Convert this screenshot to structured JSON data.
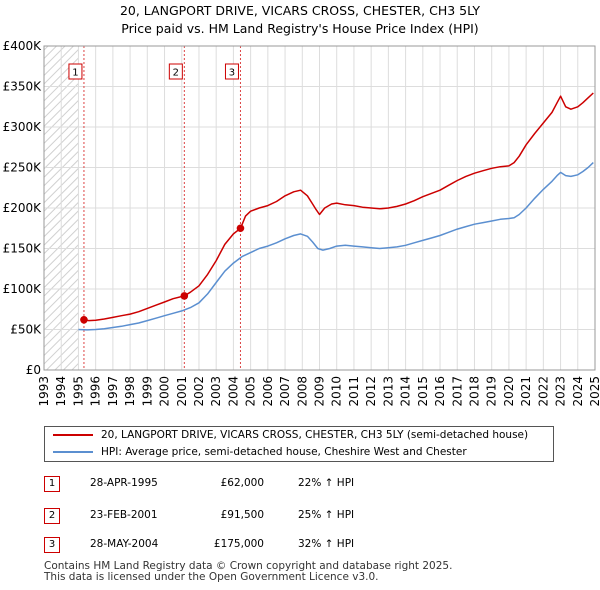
{
  "title_line1": "20, LANGPORT DRIVE, VICARS CROSS, CHESTER, CH3 5LY",
  "title_line2": "Price paid vs. HM Land Registry's House Price Index (HPI)",
  "chart_data": {
    "type": "line",
    "xlim": [
      1993,
      2025
    ],
    "ylim": [
      0,
      400000
    ],
    "y_ticks": [
      0,
      50000,
      100000,
      150000,
      200000,
      250000,
      300000,
      350000,
      400000
    ],
    "y_tick_labels": [
      "£0",
      "£50K",
      "£100K",
      "£150K",
      "£200K",
      "£250K",
      "£300K",
      "£350K",
      "£400K"
    ],
    "x_ticks": [
      1993,
      1994,
      1995,
      1996,
      1997,
      1998,
      1999,
      2000,
      2001,
      2002,
      2003,
      2004,
      2005,
      2006,
      2007,
      2008,
      2009,
      2010,
      2011,
      2012,
      2013,
      2014,
      2015,
      2016,
      2017,
      2018,
      2019,
      2020,
      2021,
      2022,
      2023,
      2024,
      2025
    ],
    "hatch_regions": [
      [
        1993,
        1995.0
      ],
      [
        2025.0,
        2025.3
      ]
    ],
    "grid": true,
    "series": [
      {
        "name": "20, LANGPORT DRIVE, VICARS CROSS, CHESTER, CH3 5LY (semi-detached house)",
        "color": "#cc0000",
        "x": [
          1995.32,
          1995.6,
          1996.0,
          1996.5,
          1997.0,
          1997.5,
          1998.0,
          1998.5,
          1999.0,
          1999.5,
          2000.0,
          2000.5,
          2001.15,
          2001.5,
          2002.0,
          2002.5,
          2003.0,
          2003.5,
          2004.0,
          2004.41,
          2004.7,
          2005.0,
          2005.5,
          2006.0,
          2006.5,
          2007.0,
          2007.5,
          2007.9,
          2008.3,
          2008.6,
          2008.8,
          2009.0,
          2009.3,
          2009.7,
          2010.0,
          2010.5,
          2011.0,
          2011.5,
          2012.0,
          2012.5,
          2013.0,
          2013.5,
          2014.0,
          2014.5,
          2015.0,
          2015.5,
          2016.0,
          2016.5,
          2017.0,
          2017.5,
          2018.0,
          2018.5,
          2019.0,
          2019.5,
          2020.0,
          2020.3,
          2020.6,
          2021.0,
          2021.5,
          2022.0,
          2022.5,
          2022.8,
          2023.0,
          2023.3,
          2023.6,
          2024.0,
          2024.3,
          2024.6,
          2024.9
        ],
        "values": [
          62000,
          61000,
          61500,
          63000,
          65000,
          67000,
          69000,
          72000,
          76000,
          80000,
          84000,
          88000,
          91500,
          96000,
          104000,
          118000,
          135000,
          155000,
          168000,
          175000,
          190000,
          196000,
          200000,
          203000,
          208000,
          215000,
          220000,
          222000,
          215000,
          205000,
          198000,
          192000,
          200000,
          205000,
          206000,
          204000,
          203000,
          201000,
          200000,
          199000,
          200000,
          202000,
          205000,
          209000,
          214000,
          218000,
          222000,
          228000,
          234000,
          239000,
          243000,
          246000,
          249000,
          251000,
          252000,
          256000,
          264000,
          278000,
          292000,
          305000,
          318000,
          330000,
          338000,
          325000,
          322000,
          325000,
          330000,
          336000,
          342000
        ]
      },
      {
        "name": "HPI: Average price, semi-detached house, Cheshire West and Chester",
        "color": "#5b8fd0",
        "x": [
          1995.0,
          1995.5,
          1996.0,
          1996.5,
          1997.0,
          1997.5,
          1998.0,
          1998.5,
          1999.0,
          1999.5,
          2000.0,
          2000.5,
          2001.0,
          2001.5,
          2002.0,
          2002.5,
          2003.0,
          2003.5,
          2004.0,
          2004.5,
          2005.0,
          2005.5,
          2006.0,
          2006.5,
          2007.0,
          2007.5,
          2007.9,
          2008.3,
          2008.6,
          2008.9,
          2009.2,
          2009.6,
          2010.0,
          2010.5,
          2011.0,
          2011.5,
          2012.0,
          2012.5,
          2013.0,
          2013.5,
          2014.0,
          2014.5,
          2015.0,
          2015.5,
          2016.0,
          2016.5,
          2017.0,
          2017.5,
          2018.0,
          2018.5,
          2019.0,
          2019.5,
          2020.0,
          2020.3,
          2020.6,
          2021.0,
          2021.5,
          2022.0,
          2022.5,
          2022.8,
          2023.0,
          2023.3,
          2023.6,
          2024.0,
          2024.3,
          2024.6,
          2024.9
        ],
        "values": [
          50000,
          49500,
          50000,
          51000,
          52500,
          54000,
          56000,
          58000,
          61000,
          64000,
          67000,
          70000,
          73000,
          77000,
          83000,
          94000,
          108000,
          122000,
          132000,
          140000,
          145000,
          150000,
          153000,
          157000,
          162000,
          166000,
          168000,
          165000,
          158000,
          150000,
          148000,
          150000,
          153000,
          154000,
          153000,
          152000,
          151000,
          150000,
          151000,
          152000,
          154000,
          157000,
          160000,
          163000,
          166000,
          170000,
          174000,
          177000,
          180000,
          182000,
          184000,
          186000,
          187000,
          188000,
          192000,
          200000,
          212000,
          223000,
          233000,
          240000,
          244000,
          240000,
          239000,
          241000,
          245000,
          250000,
          256000
        ]
      }
    ],
    "sales": [
      {
        "id": "1",
        "x": 1995.32,
        "value": 62000
      },
      {
        "id": "2",
        "x": 2001.15,
        "value": 91500
      },
      {
        "id": "3",
        "x": 2004.41,
        "value": 175000
      }
    ]
  },
  "legend": {
    "entries": [
      {
        "label": "20, LANGPORT DRIVE, VICARS CROSS, CHESTER, CH3 5LY (semi-detached house)",
        "color": "#cc0000"
      },
      {
        "label": "HPI: Average price, semi-detached house, Cheshire West and Chester",
        "color": "#5b8fd0"
      }
    ]
  },
  "table": {
    "rows": [
      {
        "num": "1",
        "date": "28-APR-1995",
        "price": "£62,000",
        "hpi": "22% ↑ HPI"
      },
      {
        "num": "2",
        "date": "23-FEB-2001",
        "price": "£91,500",
        "hpi": "25% ↑ HPI"
      },
      {
        "num": "3",
        "date": "28-MAY-2004",
        "price": "£175,000",
        "hpi": "32% ↑ HPI"
      }
    ]
  },
  "footer": {
    "line1": "Contains HM Land Registry data © Crown copyright and database right 2025.",
    "line2": "This data is licensed under the Open Government Licence v3.0."
  }
}
